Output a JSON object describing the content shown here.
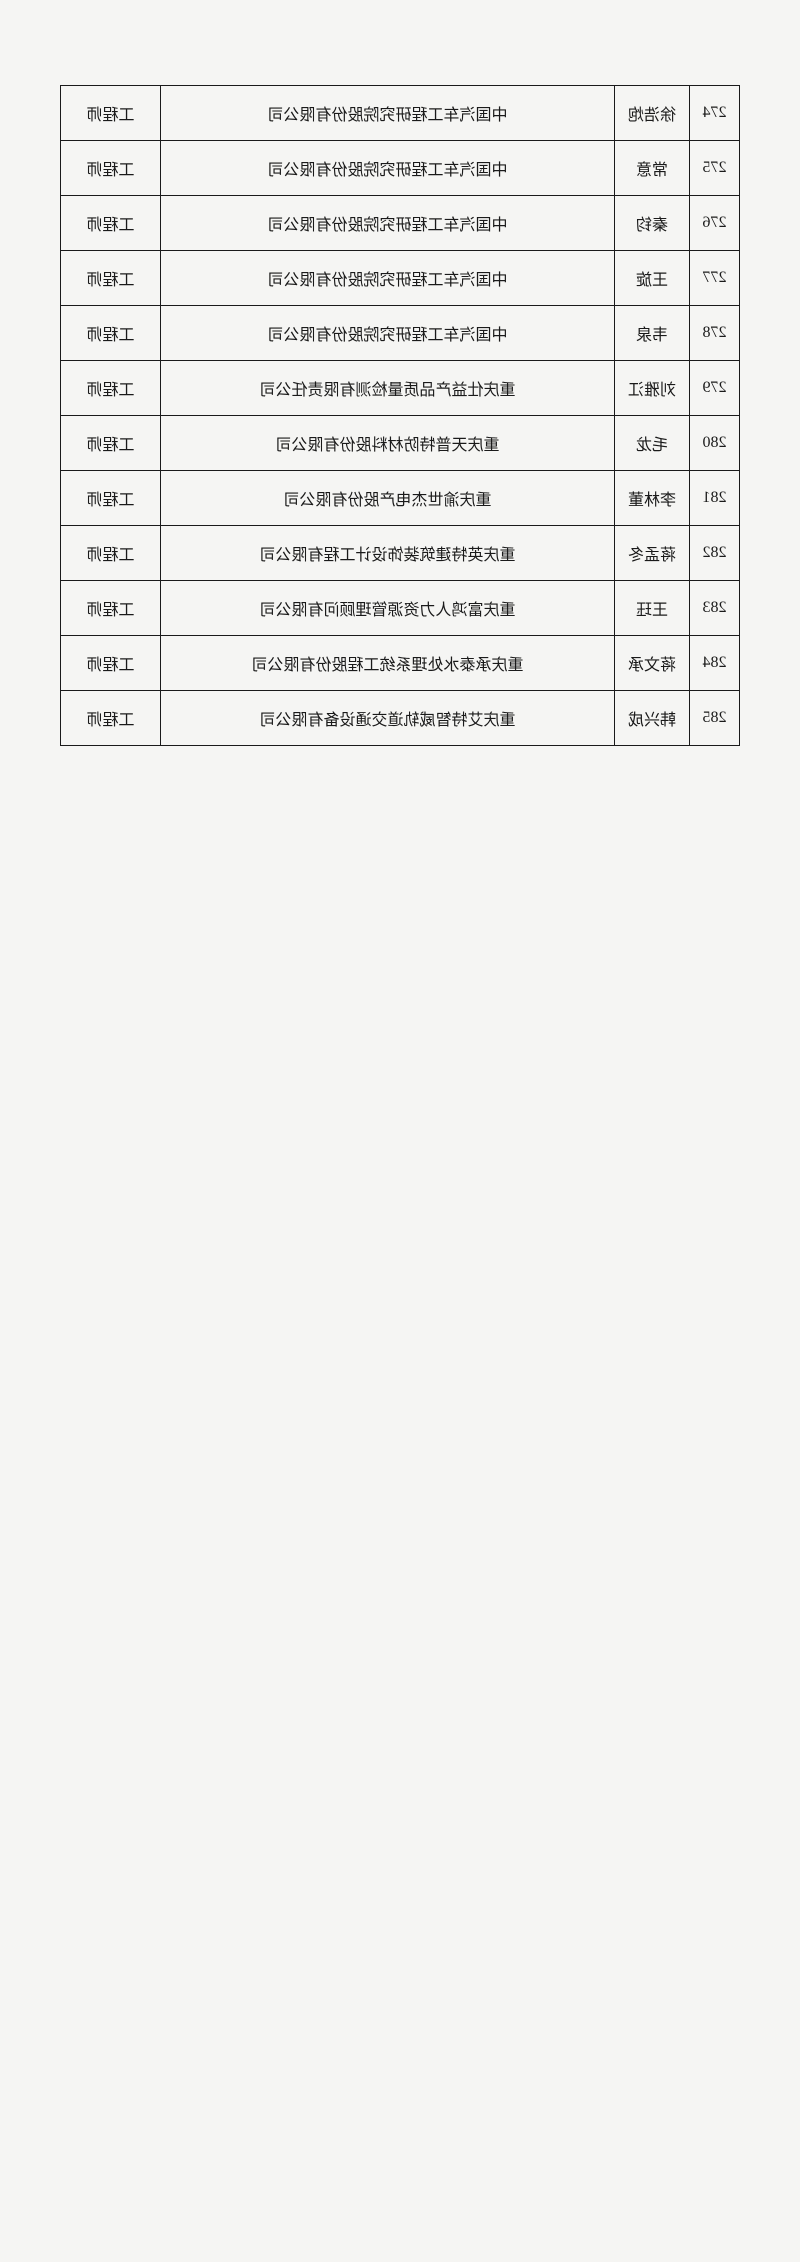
{
  "table": {
    "rows": [
      {
        "num": "274",
        "name": "徐浩炮",
        "company": "中国汽车工程研究院股份有限公司",
        "title": "工程师"
      },
      {
        "num": "275",
        "name": "常意",
        "company": "中国汽车工程研究院股份有限公司",
        "title": "工程师"
      },
      {
        "num": "276",
        "name": "秦钧",
        "company": "中国汽车工程研究院股份有限公司",
        "title": "工程师"
      },
      {
        "num": "277",
        "name": "王旋",
        "company": "中国汽车工程研究院股份有限公司",
        "title": "工程师"
      },
      {
        "num": "278",
        "name": "韦泉",
        "company": "中国汽车工程研究院股份有限公司",
        "title": "工程师"
      },
      {
        "num": "279",
        "name": "刘雅江",
        "company": "重庆仕益产品质量检测有限责任公司",
        "title": "工程师"
      },
      {
        "num": "280",
        "name": "毛龙",
        "company": "重庆天普特防材料股份有限公司",
        "title": "工程师"
      },
      {
        "num": "281",
        "name": "李林董",
        "company": "重庆渝世杰电产股份有限公司",
        "title": "工程师"
      },
      {
        "num": "282",
        "name": "蒋孟冬",
        "company": "重庆英特建筑装饰设计工程有限公司",
        "title": "工程师"
      },
      {
        "num": "283",
        "name": "王珏",
        "company": "重庆富鸿人力资源管理顾问有限公司",
        "title": "工程师"
      },
      {
        "num": "284",
        "name": "蒋文承",
        "company": "重庆承泰水处理系统工程股份有限公司",
        "title": "工程师"
      },
      {
        "num": "285",
        "name": "韩兴成",
        "company": "重庆艾特智威轨道交通设备有限公司",
        "title": "工程师"
      }
    ]
  }
}
